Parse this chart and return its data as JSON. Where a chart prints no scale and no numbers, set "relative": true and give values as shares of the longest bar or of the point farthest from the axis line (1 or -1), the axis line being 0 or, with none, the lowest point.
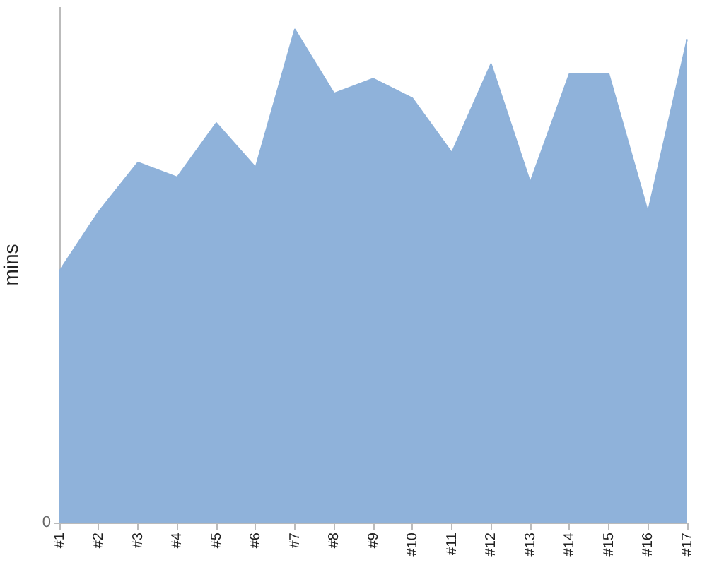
{
  "chart_data": {
    "type": "area",
    "relative": true,
    "ylabel": "mins",
    "categories": [
      "#1",
      "#2",
      "#3",
      "#4",
      "#5",
      "#6",
      "#7",
      "#8",
      "#9",
      "#10",
      "#11",
      "#12",
      "#13",
      "#14",
      "#15",
      "#16",
      "#17"
    ],
    "values": [
      0.51,
      0.63,
      0.73,
      0.7,
      0.81,
      0.72,
      1,
      0.87,
      0.9,
      0.86,
      0.75,
      0.93,
      0.69,
      0.91,
      0.91,
      0.63,
      0.98
    ],
    "color": "#8fb2da",
    "annotations": [
      "0"
    ],
    "grid": false,
    "legend": false
  }
}
